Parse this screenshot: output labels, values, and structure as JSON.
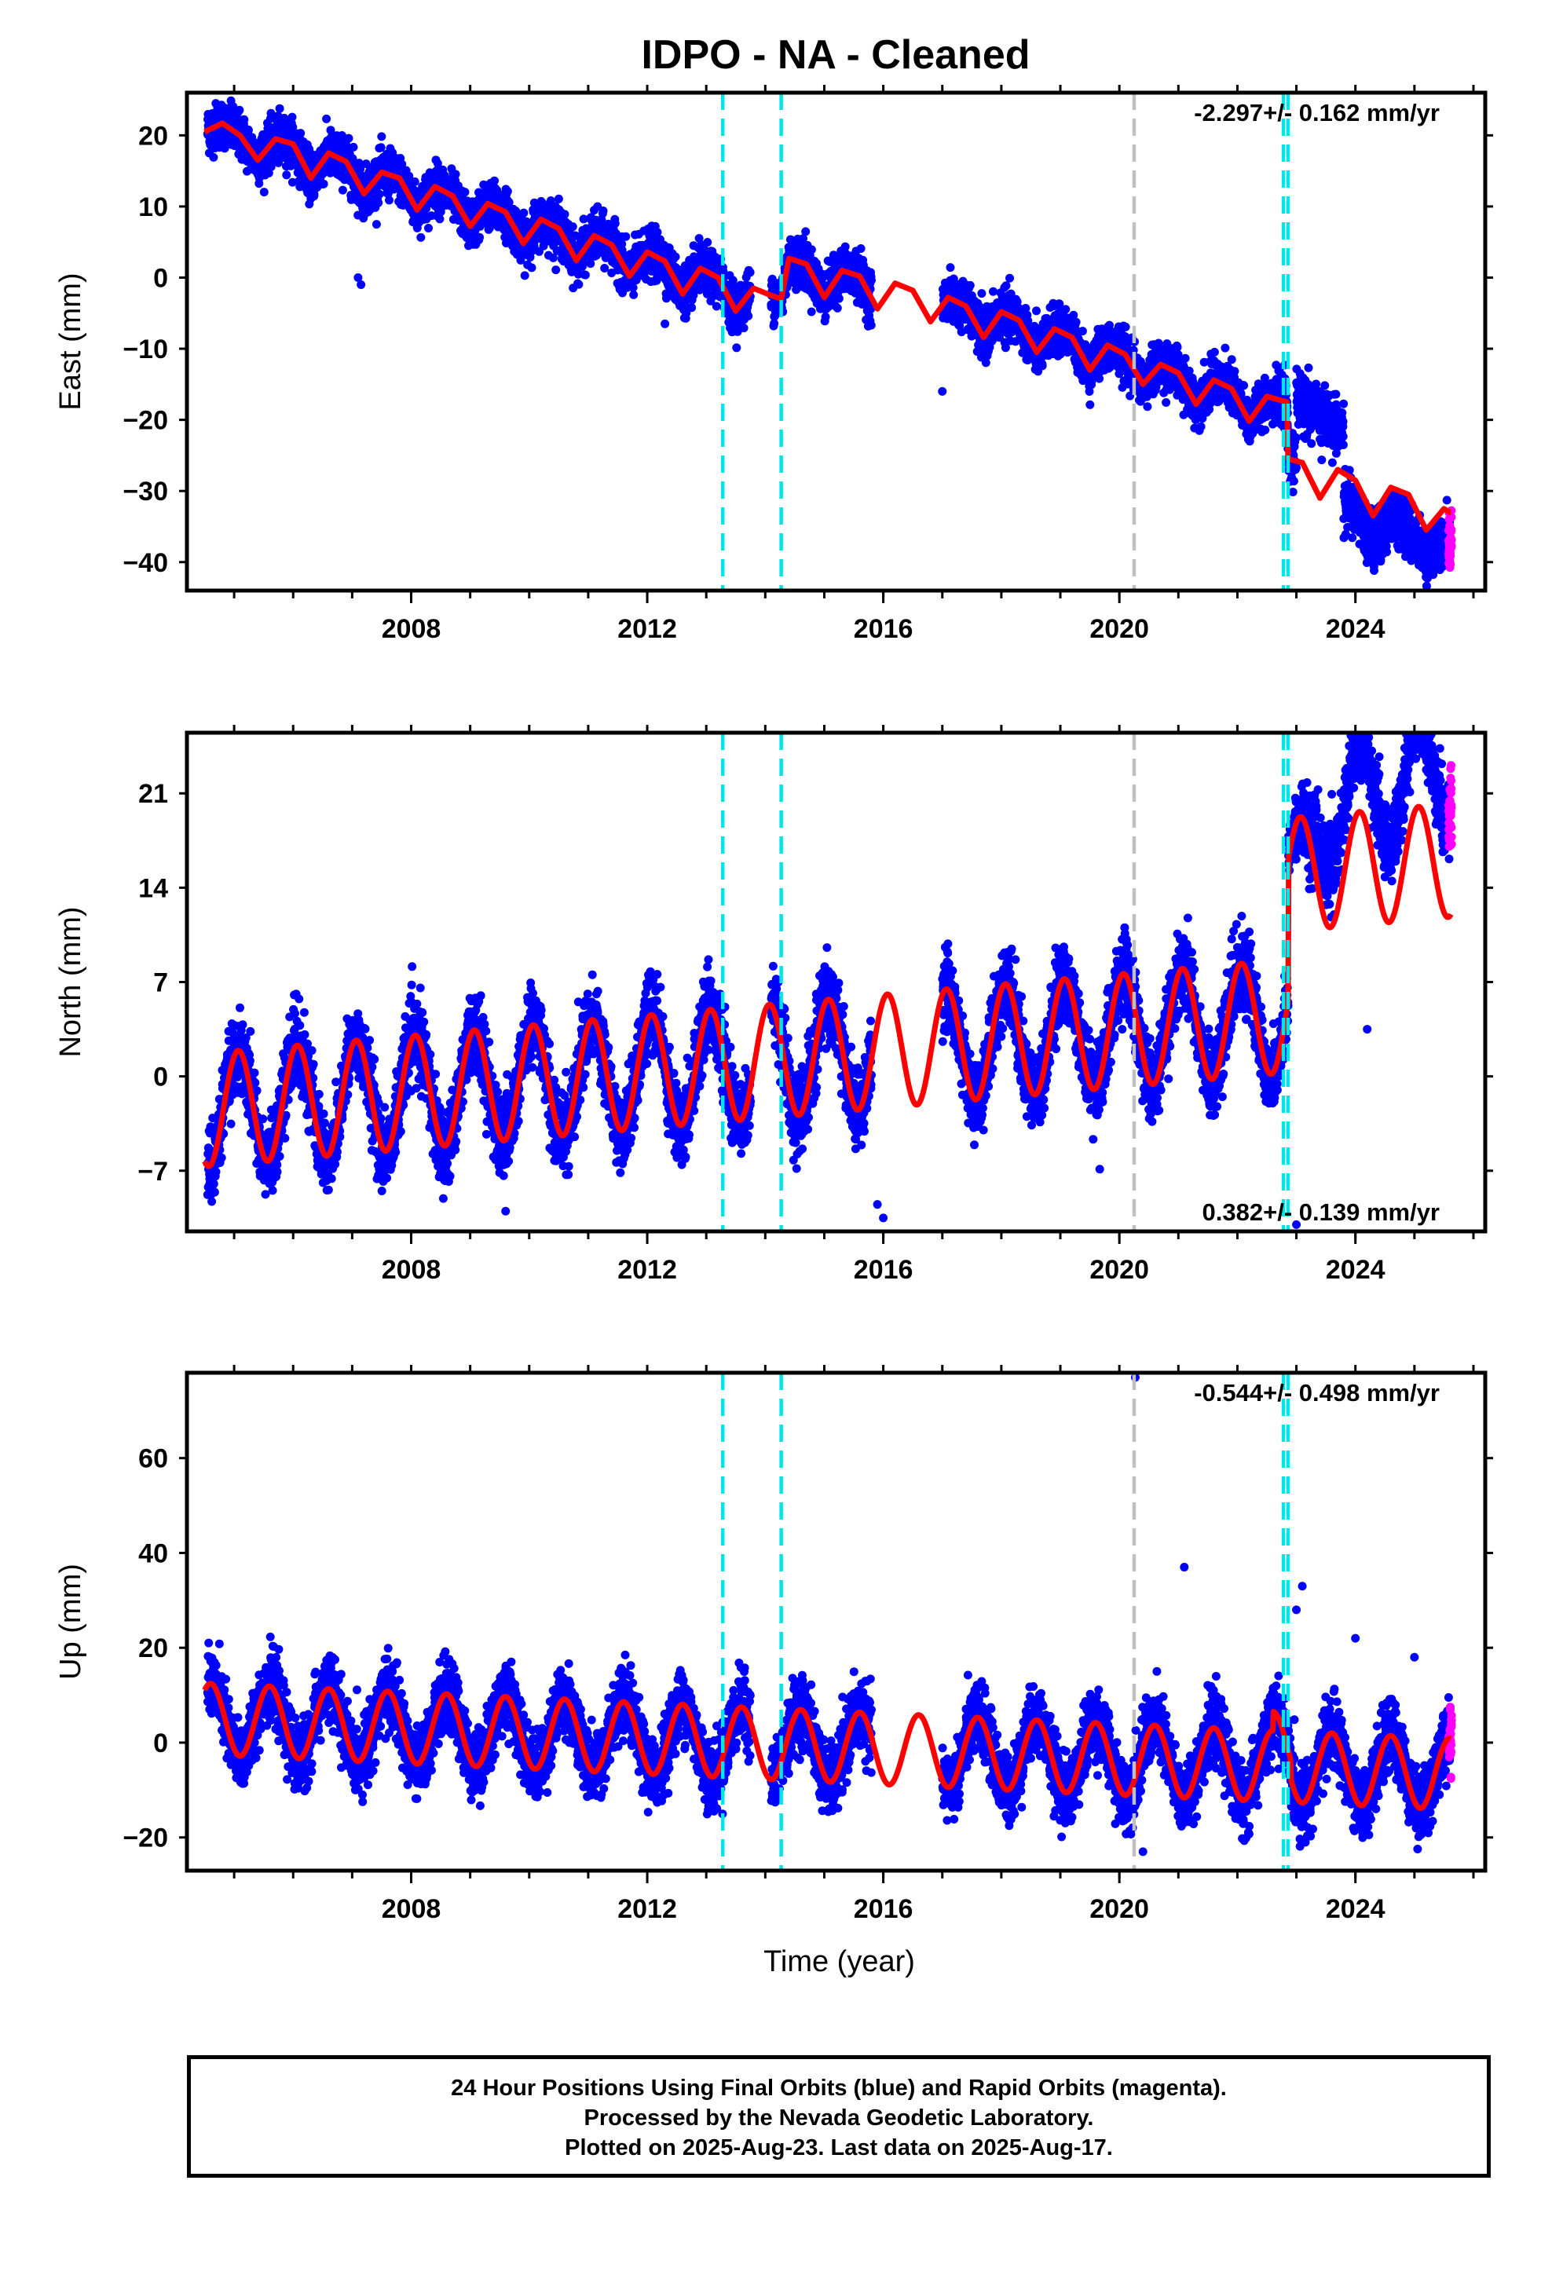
{
  "title": "IDPO  - NA - Cleaned",
  "footer": {
    "line1": "24 Hour Positions Using Final Orbits (blue) and Rapid Orbits (magenta).",
    "line2": "Processed by the Nevada Geodetic Laboratory.",
    "line3": "Plotted on 2025-Aug-23. Last data on 2025-Aug-17."
  },
  "colors": {
    "final_orbits": "#0000ff",
    "rapid_orbits": "#ff00ff",
    "model": "#ff0000",
    "equipment_change": "#00e5e5",
    "event": "#c0c0c0"
  },
  "chart_data": [
    {
      "type": "scatter",
      "name": "east",
      "ylabel": "East (mm)",
      "xlabel": "",
      "xlim": [
        2004.2,
        2026.2
      ],
      "ylim": [
        -44,
        26
      ],
      "yticks": [
        20,
        10,
        0,
        -10,
        -20,
        -30,
        -40
      ],
      "xticks": [
        2008,
        2012,
        2016,
        2020,
        2024
      ],
      "grid": false,
      "rate_label": "-2.297+/- 0.162 mm/yr",
      "rate_position": "top-right",
      "vlines": [
        {
          "x": 2013.28,
          "color": "cyan",
          "style": "dashed"
        },
        {
          "x": 2014.27,
          "color": "cyan",
          "style": "dashed"
        },
        {
          "x": 2020.25,
          "color": "gray",
          "style": "dashed"
        },
        {
          "x": 2022.78,
          "color": "cyan",
          "style": "dashed"
        },
        {
          "x": 2022.86,
          "color": "cyan",
          "style": "dashed"
        }
      ],
      "model_curve": {
        "x": [
          2004.5,
          2004.8,
          2005.1,
          2005.4,
          2005.7,
          2006.0,
          2006.3,
          2006.6,
          2006.9,
          2007.2,
          2007.5,
          2007.8,
          2008.1,
          2008.4,
          2008.7,
          2009.0,
          2009.3,
          2009.6,
          2009.9,
          2010.2,
          2010.5,
          2010.8,
          2011.1,
          2011.4,
          2011.7,
          2012.0,
          2012.3,
          2012.6,
          2012.9,
          2013.2,
          2013.5,
          2013.8,
          2014.1,
          2014.27,
          2014.4,
          2014.7,
          2015.0,
          2015.3,
          2015.6,
          2015.9,
          2016.2,
          2016.5,
          2016.8,
          2017.1,
          2017.4,
          2017.7,
          2018.0,
          2018.3,
          2018.6,
          2018.9,
          2019.2,
          2019.5,
          2019.8,
          2020.1,
          2020.4,
          2020.7,
          2021.0,
          2021.3,
          2021.6,
          2021.9,
          2022.2,
          2022.5,
          2022.84,
          2022.86,
          2023.1,
          2023.4,
          2023.7,
          2024.0,
          2024.3,
          2024.6,
          2024.9,
          2025.2,
          2025.5,
          2025.6
        ],
        "y": [
          20.5,
          21.7,
          20.0,
          16.5,
          19.5,
          18.8,
          14.0,
          17.5,
          16.3,
          11.8,
          14.8,
          14.0,
          9.5,
          12.8,
          11.5,
          7.2,
          10.4,
          9.2,
          4.8,
          8.2,
          6.9,
          2.4,
          5.9,
          4.6,
          0.2,
          3.6,
          2.3,
          -2.3,
          1.3,
          0.0,
          -4.7,
          -1.5,
          -2.5,
          -3.0,
          2.7,
          1.9,
          -2.8,
          1.0,
          0.2,
          -4.4,
          -0.8,
          -1.8,
          -6.2,
          -2.8,
          -4.0,
          -8.4,
          -4.8,
          -6.0,
          -10.5,
          -7.2,
          -8.4,
          -13.0,
          -9.5,
          -10.8,
          -15.0,
          -12.2,
          -13.4,
          -17.8,
          -14.4,
          -15.6,
          -20.2,
          -16.7,
          -17.5,
          -25.5,
          -26.0,
          -31.0,
          -27.0,
          -28.5,
          -33.5,
          -29.5,
          -30.5,
          -35.5,
          -32.5,
          -33.0
        ]
      }
    },
    {
      "type": "scatter",
      "name": "north",
      "ylabel": "North (mm)",
      "xlabel": "",
      "xlim": [
        2004.2,
        2026.2
      ],
      "ylim": [
        -11.5,
        25.5
      ],
      "yticks": [
        21,
        14,
        7,
        0,
        -7
      ],
      "xticks": [
        2008,
        2012,
        2016,
        2020,
        2024
      ],
      "grid": false,
      "rate_label": "0.382+/- 0.139 mm/yr",
      "rate_position": "bottom-right",
      "vlines": [
        {
          "x": 2013.28,
          "color": "cyan",
          "style": "dashed"
        },
        {
          "x": 2014.27,
          "color": "cyan",
          "style": "dashed"
        },
        {
          "x": 2020.25,
          "color": "gray",
          "style": "dashed"
        },
        {
          "x": 2022.78,
          "color": "cyan",
          "style": "dashed"
        },
        {
          "x": 2022.86,
          "color": "cyan",
          "style": "dashed"
        }
      ],
      "model_curve": {
        "annual_amplitude": 4.2,
        "trend_start": -2.5,
        "offset_after_2022_86": 10.5
      }
    },
    {
      "type": "scatter",
      "name": "up",
      "ylabel": "Up (mm)",
      "xlabel": "Time (year)",
      "xlim": [
        2004.2,
        2026.2
      ],
      "ylim": [
        -27,
        78
      ],
      "yticks": [
        60,
        40,
        20,
        0,
        -20
      ],
      "xticks": [
        2008,
        2012,
        2016,
        2020,
        2024
      ],
      "grid": false,
      "rate_label": "-0.544+/- 0.498 mm/yr",
      "rate_position": "top-right",
      "vlines": [
        {
          "x": 2013.28,
          "color": "cyan",
          "style": "dashed"
        },
        {
          "x": 2014.27,
          "color": "cyan",
          "style": "dashed"
        },
        {
          "x": 2020.25,
          "color": "gray",
          "style": "dashed"
        },
        {
          "x": 2022.78,
          "color": "cyan",
          "style": "dashed"
        },
        {
          "x": 2022.86,
          "color": "cyan",
          "style": "dashed"
        }
      ],
      "model_curve": {
        "annual_amplitude": 7.5,
        "trend_start": 5.0
      }
    }
  ]
}
